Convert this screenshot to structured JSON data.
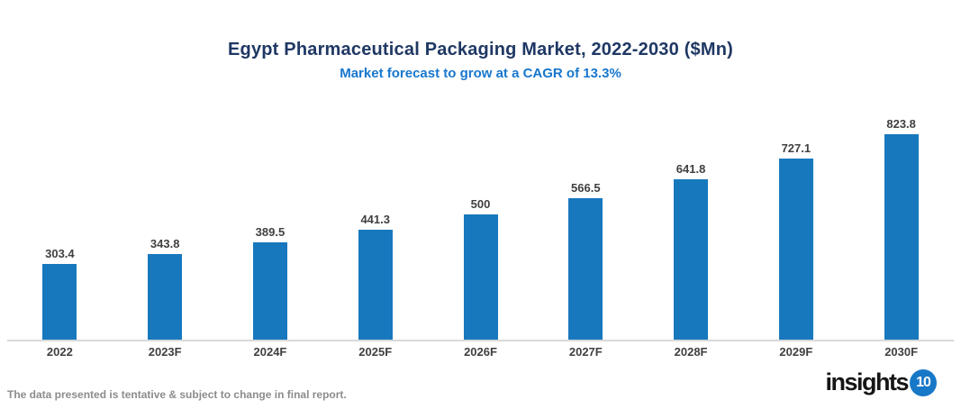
{
  "title": "Egypt Pharmaceutical Packaging Market, 2022-2030 ($Mn)",
  "subtitle": "Market forecast to grow at a CAGR of 13.3%",
  "footer": "The data presented is tentative & subject to change in final report.",
  "logo": {
    "text": "insights",
    "badge": "10"
  },
  "colors": {
    "bar": "#1878BE",
    "title": "#1F3864",
    "subtitle": "#1777CE",
    "axis_line": "#D9D9D9",
    "data_label": "#404040",
    "footer_text": "#8C8C8C",
    "logo_badge": "#1878C8"
  },
  "chart_data": {
    "type": "bar",
    "title": "Egypt Pharmaceutical Packaging Market, 2022-2030 ($Mn)",
    "subtitle": "Market forecast to grow at a CAGR of 13.3%",
    "categories": [
      "2022",
      "2023F",
      "2024F",
      "2025F",
      "2026F",
      "2027F",
      "2028F",
      "2029F",
      "2030F"
    ],
    "values": [
      303.4,
      343.8,
      389.5,
      441.3,
      500,
      566.5,
      641.8,
      727.1,
      823.8
    ],
    "value_labels": [
      "303.4",
      "343.8",
      "389.5",
      "441.3",
      "500",
      "566.5",
      "641.8",
      "727.1",
      "823.8"
    ],
    "xlabel": "",
    "ylabel": "",
    "ylim": [
      0,
      900
    ],
    "grid": false,
    "legend_position": "none",
    "data_labels": true
  }
}
